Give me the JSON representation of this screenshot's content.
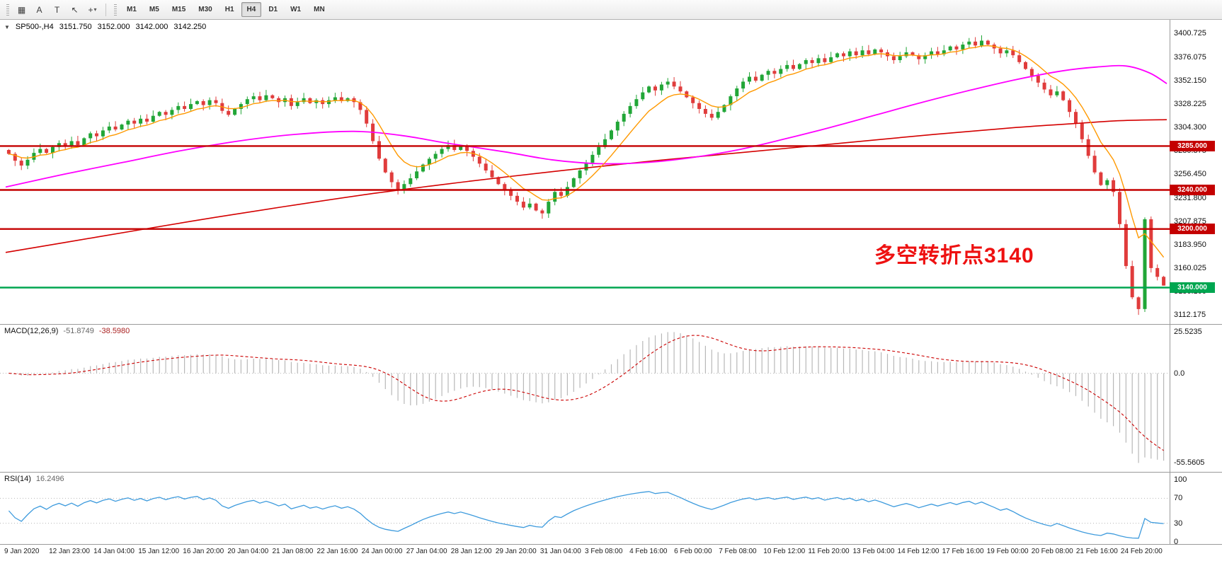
{
  "toolbar": {
    "tools": [
      {
        "name": "grid-tool",
        "glyph": "▦"
      },
      {
        "name": "annotate-a-tool",
        "glyph": "A"
      },
      {
        "name": "annotate-t-tool",
        "glyph": "T"
      },
      {
        "name": "cursor-tool",
        "glyph": "↖"
      },
      {
        "name": "crosshair-tool",
        "glyph": "+",
        "dropdown": "▾"
      }
    ],
    "timeframes": [
      "M1",
      "M5",
      "M15",
      "M30",
      "H1",
      "H4",
      "D1",
      "W1",
      "MN"
    ],
    "active_timeframe": "H4"
  },
  "chart": {
    "collapse_glyph": "▼",
    "symbol_label": "SP500-,H4",
    "ohlc": {
      "open": "3151.750",
      "high": "3152.000",
      "low": "3142.000",
      "close": "3142.250"
    },
    "annotation": {
      "text": "多空转折点3140",
      "color": "#ee1111"
    },
    "price_axis_labels": [
      "3400.725",
      "3376.075",
      "3352.150",
      "3328.225",
      "3304.300",
      "3280.375",
      "3256.450",
      "3231.800",
      "3207.875",
      "3183.950",
      "3160.025",
      "3136.100",
      "3112.175"
    ],
    "hlines": [
      {
        "price": 3285.0,
        "label": "3285.000",
        "color": "#c40000"
      },
      {
        "price": 3240.0,
        "label": "3240.000",
        "color": "#c40000"
      },
      {
        "price": 3200.0,
        "label": "3200.000",
        "color": "#c40000"
      },
      {
        "price": 3140.0,
        "label": "3140.000",
        "color": "#00a650"
      }
    ],
    "colors": {
      "up": "#21a637",
      "down": "#e03c3c",
      "ma_fast": "#ff9900",
      "ma_mid": "#ff00ff",
      "ma_slow": "#d40000"
    }
  },
  "macd": {
    "label": "MACD(12,26,9)",
    "value1": "-51.8749",
    "value2": "-38.5980",
    "axis_labels": [
      "25.5235",
      "0.0",
      "-55.5605"
    ],
    "bar_color": "#b8b8b8",
    "signal_color": "#cc0000"
  },
  "rsi": {
    "label": "RSI(14)",
    "value": "16.2496",
    "axis_labels": [
      "100",
      "70",
      "30",
      "0"
    ],
    "levels": [
      70,
      30
    ],
    "line_color": "#3e9bdd"
  },
  "time_axis": [
    "9 Jan 2020",
    "12 Jan 23:00",
    "14 Jan 04:00",
    "15 Jan 12:00",
    "16 Jan 20:00",
    "20 Jan 04:00",
    "21 Jan 08:00",
    "22 Jan 16:00",
    "24 Jan 00:00",
    "27 Jan 04:00",
    "28 Jan 12:00",
    "29 Jan 20:00",
    "31 Jan 04:00",
    "3 Feb 08:00",
    "4 Feb 16:00",
    "6 Feb 00:00",
    "7 Feb 08:00",
    "10 Feb 12:00",
    "11 Feb 20:00",
    "13 Feb 04:00",
    "14 Feb 12:00",
    "17 Feb 16:00",
    "19 Feb 00:00",
    "20 Feb 08:00",
    "21 Feb 16:00",
    "24 Feb 20:00"
  ],
  "chart_data": {
    "type": "candlestick_with_indicators",
    "symbol": "SP500-",
    "timeframe": "H4",
    "x_axis": "time, H4 bars from 9 Jan 2020 to 24 Feb 2020",
    "y_axis": "price",
    "price_axis_range": [
      3107,
      3410
    ],
    "support_resistance_levels": [
      3285,
      3240,
      3200,
      3140
    ],
    "first_open": 3281,
    "closes": [
      3277,
      3270,
      3265,
      3271,
      3278,
      3282,
      3278,
      3284,
      3288,
      3285,
      3290,
      3286,
      3293,
      3298,
      3295,
      3301,
      3305,
      3302,
      3307,
      3311,
      3308,
      3313,
      3310,
      3316,
      3320,
      3317,
      3322,
      3326,
      3323,
      3328,
      3331,
      3327,
      3332,
      3329,
      3321,
      3317,
      3323,
      3328,
      3333,
      3336,
      3332,
      3337,
      3334,
      3330,
      3334,
      3326,
      3330,
      3334,
      3329,
      3332,
      3328,
      3332,
      3335,
      3331,
      3334,
      3330,
      3322,
      3308,
      3290,
      3272,
      3258,
      3248,
      3240,
      3246,
      3252,
      3259,
      3266,
      3272,
      3277,
      3282,
      3286,
      3281,
      3285,
      3280,
      3274,
      3267,
      3260,
      3253,
      3246,
      3240,
      3234,
      3228,
      3222,
      3226,
      3219,
      3216,
      3228,
      3238,
      3234,
      3243,
      3252,
      3260,
      3268,
      3276,
      3284,
      3292,
      3301,
      3310,
      3318,
      3326,
      3333,
      3340,
      3346,
      3342,
      3348,
      3351,
      3346,
      3341,
      3335,
      3329,
      3323,
      3318,
      3314,
      3320,
      3327,
      3336,
      3344,
      3351,
      3356,
      3352,
      3358,
      3362,
      3359,
      3364,
      3368,
      3364,
      3369,
      3373,
      3370,
      3375,
      3371,
      3376,
      3380,
      3377,
      3382,
      3378,
      3383,
      3379,
      3384,
      3381,
      3377,
      3373,
      3377,
      3381,
      3378,
      3374,
      3378,
      3382,
      3379,
      3383,
      3387,
      3384,
      3389,
      3392,
      3388,
      3393,
      3389,
      3385,
      3380,
      3383,
      3378,
      3371,
      3364,
      3357,
      3350,
      3343,
      3337,
      3341,
      3332,
      3320,
      3308,
      3292,
      3275,
      3258,
      3245,
      3250,
      3238,
      3205,
      3162,
      3130,
      3118,
      3210,
      3160,
      3151,
      3142
    ],
    "wick_low_overrides": {
      "180": 3112,
      "181": 3115,
      "184": 3142
    },
    "wick_high_overrides": {
      "184": 3152
    },
    "ma_fast_period": 8,
    "ma_mid_anchors": [
      [
        0,
        3243
      ],
      [
        0.05,
        3256
      ],
      [
        0.1,
        3268
      ],
      [
        0.15,
        3280
      ],
      [
        0.2,
        3290
      ],
      [
        0.25,
        3297
      ],
      [
        0.3,
        3300
      ],
      [
        0.34,
        3296
      ],
      [
        0.38,
        3288
      ],
      [
        0.43,
        3279
      ],
      [
        0.47,
        3271
      ],
      [
        0.51,
        3267
      ],
      [
        0.55,
        3268
      ],
      [
        0.59,
        3273
      ],
      [
        0.63,
        3281
      ],
      [
        0.67,
        3292
      ],
      [
        0.71,
        3304
      ],
      [
        0.75,
        3317
      ],
      [
        0.79,
        3330
      ],
      [
        0.83,
        3342
      ],
      [
        0.87,
        3353
      ],
      [
        0.91,
        3362
      ],
      [
        0.94,
        3366
      ],
      [
        0.965,
        3367
      ],
      [
        0.985,
        3360
      ],
      [
        1,
        3349
      ]
    ],
    "ma_slow_anchors": [
      [
        0,
        3176
      ],
      [
        0.08,
        3192
      ],
      [
        0.16,
        3208
      ],
      [
        0.24,
        3223
      ],
      [
        0.32,
        3237
      ],
      [
        0.4,
        3249
      ],
      [
        0.48,
        3260
      ],
      [
        0.56,
        3270
      ],
      [
        0.64,
        3279
      ],
      [
        0.72,
        3288
      ],
      [
        0.8,
        3297
      ],
      [
        0.87,
        3304
      ],
      [
        0.92,
        3308
      ],
      [
        0.96,
        3311
      ],
      [
        1,
        3312
      ]
    ],
    "macd_params": [
      12,
      26,
      9
    ],
    "macd_axis_range": [
      -55.5605,
      25.5235
    ],
    "rsi_period": 14,
    "rsi_axis_range": [
      0,
      100
    ]
  }
}
